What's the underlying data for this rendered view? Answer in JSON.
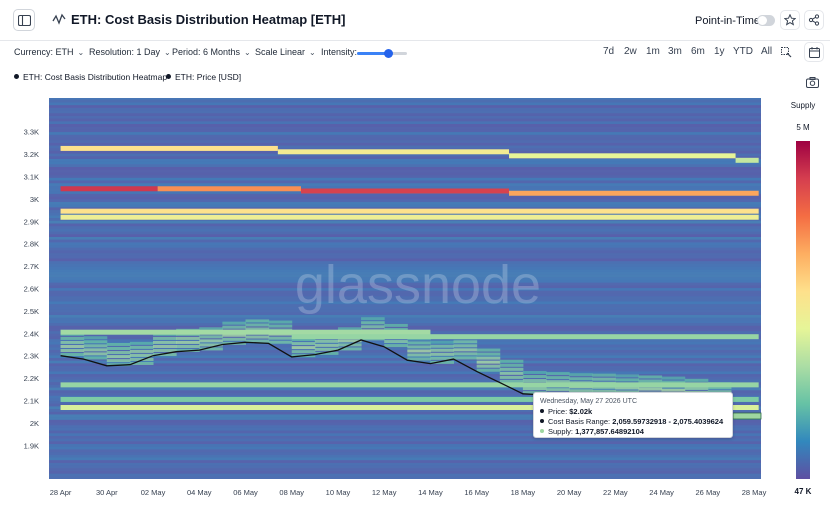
{
  "header": {
    "title": "ETH: Cost Basis Distribution Heatmap [ETH]",
    "point_in_time_label": "Point-in-Time",
    "point_in_time_enabled": false
  },
  "controls": {
    "currency": "Currency: ETH",
    "resolution": "Resolution: 1 Day",
    "period": "Period: 6 Months",
    "scale": "Scale Linear",
    "intensity_label": "Intensity:",
    "intensity_level": 0.65,
    "ranges": [
      "7d",
      "2w",
      "1m",
      "3m",
      "6m",
      "1y",
      "YTD",
      "All"
    ]
  },
  "legend": {
    "items": [
      "ETH: Cost Basis Distribution Heatmap",
      "ETH: Price [USD]"
    ]
  },
  "watermark": "glassnode",
  "colors": {
    "supply_scale": [
      "#5e4fa2",
      "#3288bd",
      "#66c2a5",
      "#abdda4",
      "#e6f598",
      "#fee08b",
      "#fdae61",
      "#f46d43",
      "#d53e4f",
      "#9e0142"
    ],
    "price_line": "#111111",
    "heatmap_base": "#5b69b0"
  },
  "tooltip": {
    "date": "Wednesday, May 27 2026 UTC",
    "price_label": "Price: ",
    "price_value": "$2.02k",
    "range_label": "Cost Basis Range: ",
    "range_value": "2,059.59732918 - 2,075.4039624",
    "supply_label": "Supply: ",
    "supply_value": "1,377,857.64892104"
  },
  "chart_data": {
    "type": "heatmap",
    "title": "ETH: Cost Basis Distribution Heatmap [ETH]",
    "x_ticks": [
      "28 Apr",
      "30 Apr",
      "02 May",
      "04 May",
      "06 May",
      "08 May",
      "10 May",
      "12 May",
      "14 May",
      "16 May",
      "18 May",
      "20 May",
      "22 May",
      "24 May",
      "26 May",
      "28 May"
    ],
    "y_ticks": [
      "3.3K",
      "3.2K",
      "3.1K",
      "3K",
      "2.9K",
      "2.8K",
      "2.7K",
      "2.6K",
      "2.5K",
      "2.4K",
      "2.3K",
      "2.2K",
      "2.1K",
      "2K",
      "1.9K"
    ],
    "y_range": [
      1750,
      3450
    ],
    "x_range_days": [
      -0.5,
      30.3
    ],
    "colorbar": {
      "label": "Supply",
      "max_label": "5 M",
      "min_label": "47 K",
      "max": 5000000,
      "min": 47000
    },
    "price_series": {
      "name": "ETH: Price [USD]",
      "days": [
        0,
        1,
        2,
        3,
        4,
        5,
        6,
        7,
        8,
        9,
        10,
        11,
        12,
        13,
        14,
        15,
        16,
        17,
        18,
        19,
        20,
        21,
        22,
        23,
        24,
        25,
        26,
        27,
        28,
        29
      ],
      "values": [
        2300,
        2285,
        2255,
        2260,
        2300,
        2318,
        2325,
        2350,
        2360,
        2355,
        2295,
        2305,
        2325,
        2370,
        2340,
        2280,
        2265,
        2285,
        2230,
        2180,
        2130,
        2125,
        2120,
        2118,
        2115,
        2110,
        2105,
        2095,
        2080,
        2020
      ]
    },
    "bands": [
      {
        "y": 3225,
        "t": 0.55,
        "x0": 0,
        "x1": 9.4
      },
      {
        "y": 3210,
        "t": 0.5,
        "x0": 9.4,
        "x1": 19.4
      },
      {
        "y": 3192,
        "t": 0.45,
        "x0": 19.4,
        "x1": 29.2
      },
      {
        "y": 3172,
        "t": 0.38,
        "x0": 29.2,
        "x1": 30.2
      },
      {
        "y": 3045,
        "t": 0.9,
        "x0": 0,
        "x1": 4.2
      },
      {
        "y": 3045,
        "t": 0.72,
        "x0": 4.2,
        "x1": 10.4
      },
      {
        "y": 3035,
        "t": 0.88,
        "x0": 10.4,
        "x1": 19.4
      },
      {
        "y": 3025,
        "t": 0.68,
        "x0": 19.4,
        "x1": 30.2
      },
      {
        "y": 2945,
        "t": 0.55,
        "x0": 0,
        "x1": 30.2
      },
      {
        "y": 2918,
        "t": 0.48,
        "x0": 0,
        "x1": 30.2
      },
      {
        "y": 2405,
        "t": 0.32,
        "x0": 0,
        "x1": 16
      },
      {
        "y": 2385,
        "t": 0.3,
        "x0": 10,
        "x1": 30.2
      },
      {
        "y": 2170,
        "t": 0.3,
        "x0": 0,
        "x1": 30.2
      },
      {
        "y": 2069,
        "t": 0.42,
        "x0": 0,
        "x1": 30.2
      },
      {
        "y": 2105,
        "t": 0.26,
        "x0": 0,
        "x1": 30.2
      }
    ]
  }
}
